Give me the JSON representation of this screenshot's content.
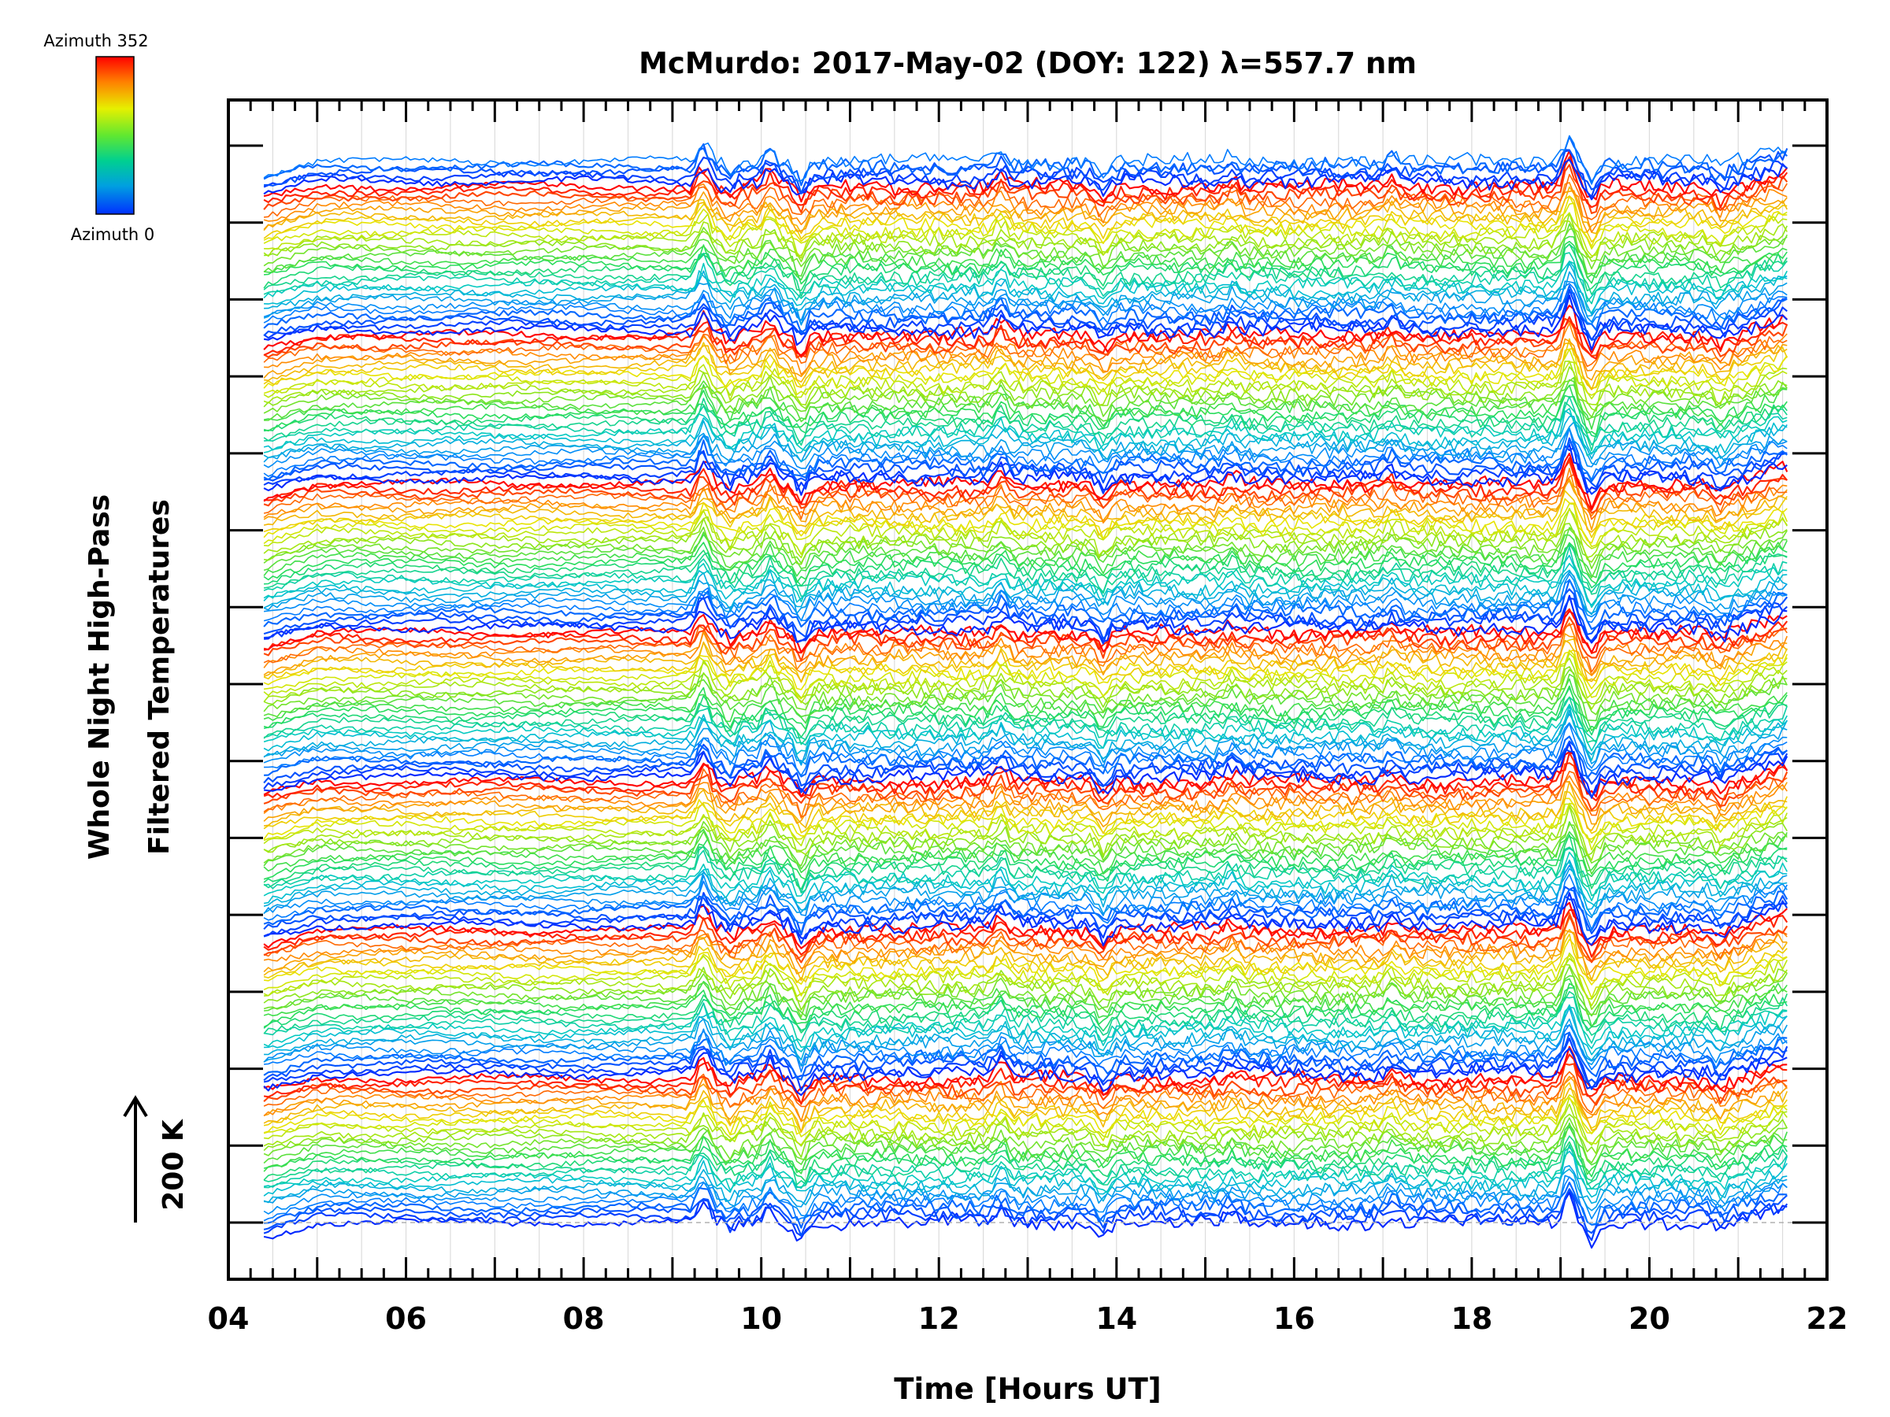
{
  "chart_data": {
    "type": "line",
    "title": "McMurdo: 2017-May-02 (DOY: 122) λ=557.7 nm",
    "xlabel": "Time [Hours UT]",
    "ylabel_line1": "Whole Night High-Pass",
    "ylabel_line2": "Filtered Temperatures",
    "scale_label": "200 K",
    "colorbar": {
      "top_label": "Azimuth 352",
      "bottom_label": "Azimuth 0",
      "colors": [
        "#ff0000",
        "#ff8000",
        "#ffff00",
        "#80ff00",
        "#00e060",
        "#00c0c0",
        "#0080ff",
        "#0000ff"
      ]
    },
    "xlim": [
      4,
      22
    ],
    "xticks": [
      4,
      6,
      8,
      10,
      12,
      14,
      16,
      18,
      20,
      22
    ],
    "xtick_labels": [
      "04",
      "06",
      "08",
      "10",
      "12",
      "14",
      "16",
      "18",
      "20",
      "22"
    ],
    "grid": true,
    "time_range": [
      4.4,
      21.55
    ],
    "series_count": 215,
    "stack_groups": 7,
    "stack_group_size": 30,
    "baseline_label": "",
    "event_times": [
      {
        "t": 9.35,
        "amp": 24,
        "sign": 1
      },
      {
        "t": 9.65,
        "amp": 10,
        "sign": -1
      },
      {
        "t": 10.1,
        "amp": 16,
        "sign": 1
      },
      {
        "t": 10.45,
        "amp": 20,
        "sign": -1
      },
      {
        "t": 12.7,
        "amp": 14,
        "sign": 1
      },
      {
        "t": 13.85,
        "amp": 16,
        "sign": -1
      },
      {
        "t": 15.3,
        "amp": 8,
        "sign": 1
      },
      {
        "t": 17.1,
        "amp": 10,
        "sign": 1
      },
      {
        "t": 19.1,
        "amp": 34,
        "sign": 1
      },
      {
        "t": 19.35,
        "amp": 22,
        "sign": -1
      },
      {
        "t": 20.8,
        "amp": 10,
        "sign": -1
      }
    ]
  }
}
